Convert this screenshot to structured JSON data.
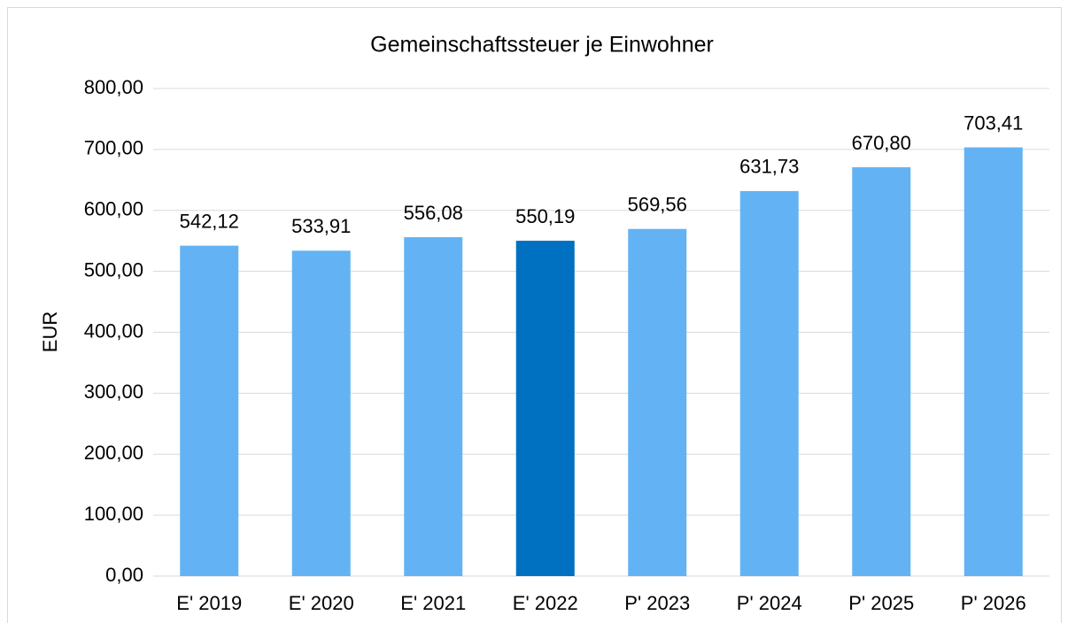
{
  "chart_data": {
    "type": "bar",
    "title": "Gemeinschaftssteuer je Einwohner",
    "y_label": "EUR",
    "categories": [
      "E' 2019",
      "E' 2020",
      "E' 2021",
      "E' 2022",
      "P' 2023",
      "P' 2024",
      "P' 2025",
      "P' 2026"
    ],
    "values": [
      542.12,
      533.91,
      556.08,
      550.19,
      569.56,
      631.73,
      670.8,
      703.41
    ],
    "value_labels": [
      "542,12",
      "533,91",
      "556,08",
      "550,19",
      "569,56",
      "631,73",
      "670,80",
      "703,41"
    ],
    "colors": [
      "#63b3f4",
      "#63b3f4",
      "#63b3f4",
      "#0070c0",
      "#63b3f4",
      "#63b3f4",
      "#63b3f4",
      "#63b3f4"
    ],
    "ylim": [
      0,
      800
    ],
    "yticks": [
      {
        "value": 0,
        "label": "0,00"
      },
      {
        "value": 100,
        "label": "100,00"
      },
      {
        "value": 200,
        "label": "200,00"
      },
      {
        "value": 300,
        "label": "300,00"
      },
      {
        "value": 400,
        "label": "400,00"
      },
      {
        "value": 500,
        "label": "500,00"
      },
      {
        "value": 600,
        "label": "600,00"
      },
      {
        "value": 700,
        "label": "700,00"
      },
      {
        "value": 800,
        "label": "800,00"
      }
    ],
    "grid": true
  }
}
